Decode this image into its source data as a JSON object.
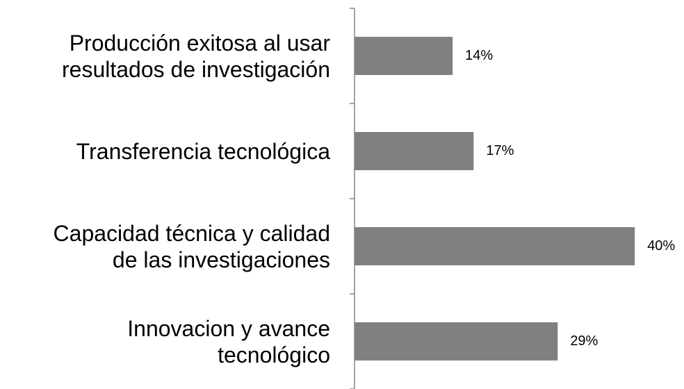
{
  "chart_data": {
    "type": "barh",
    "categories": [
      "Producción exitosa al usar\nresultados de investigación",
      "Transferencia tecnológica",
      "Capacidad técnica y calidad\nde las investigaciones",
      "Innovacion y avance\ntecnológico"
    ],
    "values": [
      14,
      17,
      40,
      29
    ],
    "value_labels": [
      "14%",
      "17%",
      "40%",
      "29%"
    ],
    "color": "#808080"
  }
}
